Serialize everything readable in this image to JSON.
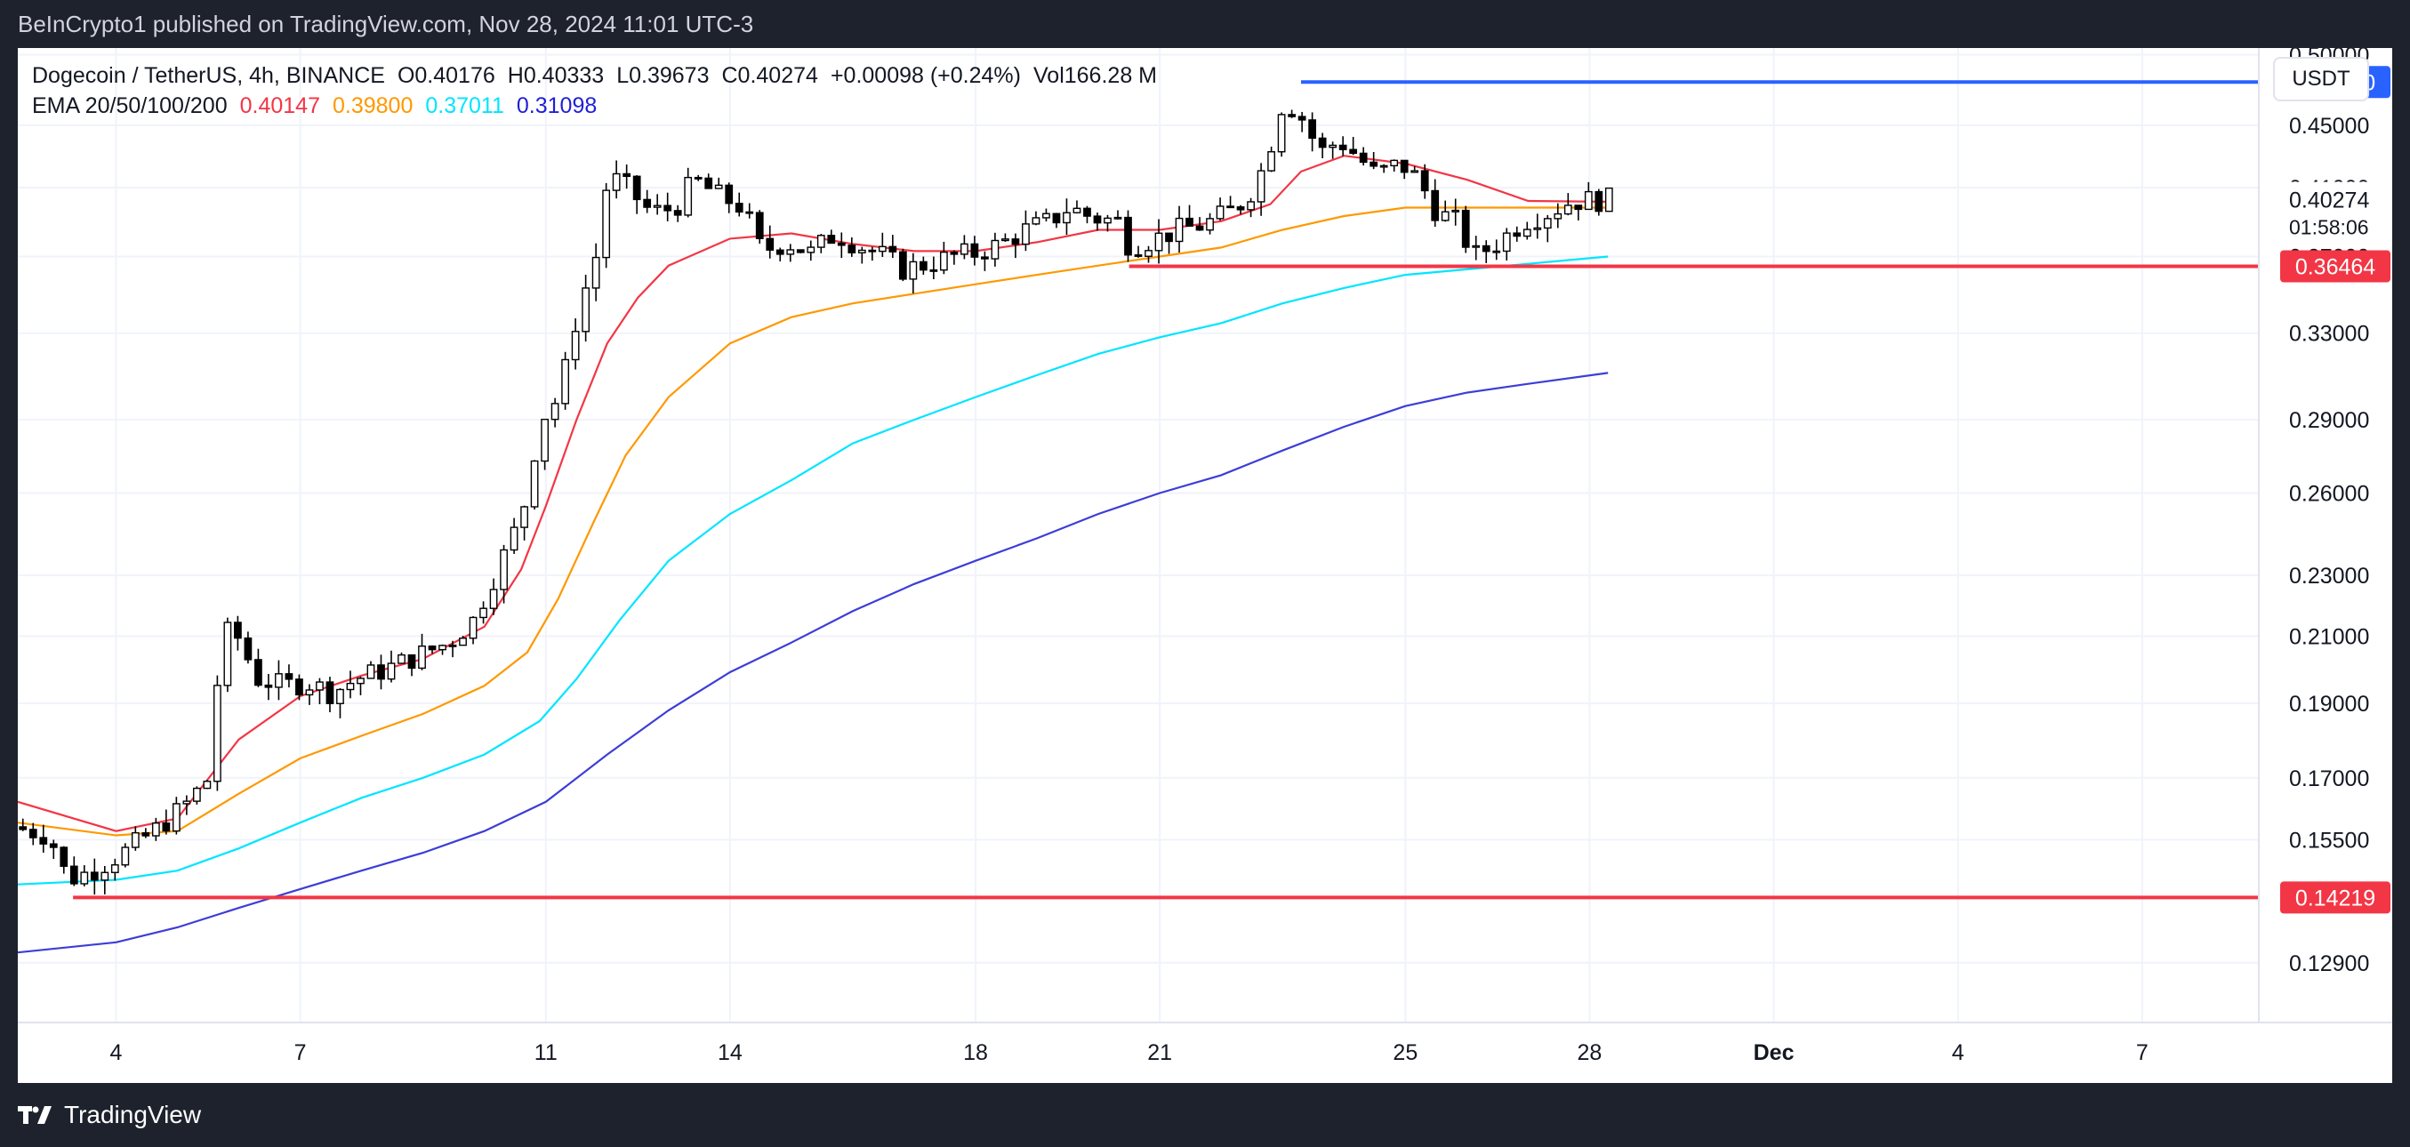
{
  "header": {
    "published": "BeInCrypto1 published on TradingView.com, Nov 28, 2024 11:01 UTC-3"
  },
  "legend": {
    "symbol": "Dogecoin / TetherUS, 4h, BINANCE",
    "open": "O0.40176",
    "high": "H0.40333",
    "low": "L0.39673",
    "close": "C0.40274",
    "change": "+0.00098 (+0.24%)",
    "volume": "Vol166.28 M",
    "ema_label": "EMA 20/50/100/200",
    "ema_values": [
      {
        "value": "0.40147",
        "color": "#f23645"
      },
      {
        "value": "0.39800",
        "color": "#ff9800"
      },
      {
        "value": "0.37011",
        "color": "#00e5ff"
      },
      {
        "value": "0.31098",
        "color": "#1f1fd6"
      }
    ]
  },
  "currency_button": "USDT",
  "footer": {
    "brand": "TradingView",
    "icon": "tradingview-logo-icon"
  },
  "chart_data": {
    "type": "candlestick",
    "y_scale": "log",
    "ylim": [
      0.118,
      0.505
    ],
    "y_ticks": [
      "0.50000",
      "0.45000",
      "0.41000",
      "0.37000",
      "0.33000",
      "0.29000",
      "0.26000",
      "0.23000",
      "0.21000",
      "0.19000",
      "0.17000",
      "0.15500",
      "0.12900"
    ],
    "x_labels": [
      {
        "label": "4",
        "day": 4
      },
      {
        "label": "7",
        "day": 7
      },
      {
        "label": "11",
        "day": 11
      },
      {
        "label": "14",
        "day": 14
      },
      {
        "label": "18",
        "day": 18
      },
      {
        "label": "21",
        "day": 21
      },
      {
        "label": "25",
        "day": 25
      },
      {
        "label": "28",
        "day": 28
      },
      {
        "label": "Dec",
        "day": 31
      },
      {
        "label": "4",
        "day": 34
      },
      {
        "label": "7",
        "day": 37
      }
    ],
    "xlim_days": [
      2.4,
      38.9
    ],
    "last_price_label": "0.40274",
    "countdown": "01:58:06",
    "horizontal_levels": [
      {
        "value": 0.48,
        "label": "0.48000",
        "color": "#2962ff",
        "start_day": 23.3
      },
      {
        "value": 0.36464,
        "label": "0.36464",
        "color": "#f23645",
        "start_day": 20.5
      },
      {
        "value": 0.14219,
        "label": "0.14219",
        "color": "#f23645",
        "start_day": 3.3
      }
    ],
    "price_path": [
      [
        2.4,
        0.158
      ],
      [
        3.0,
        0.156
      ],
      [
        3.3,
        0.146
      ],
      [
        3.7,
        0.148
      ],
      [
        4.2,
        0.152
      ],
      [
        4.7,
        0.157
      ],
      [
        5.2,
        0.163
      ],
      [
        5.6,
        0.17
      ],
      [
        5.8,
        0.21
      ],
      [
        6.0,
        0.212
      ],
      [
        6.4,
        0.197
      ],
      [
        6.8,
        0.195
      ],
      [
        7.2,
        0.196
      ],
      [
        7.6,
        0.193
      ],
      [
        8.0,
        0.197
      ],
      [
        8.5,
        0.2
      ],
      [
        9.0,
        0.204
      ],
      [
        9.5,
        0.208
      ],
      [
        9.9,
        0.215
      ],
      [
        10.3,
        0.232
      ],
      [
        10.7,
        0.252
      ],
      [
        11.0,
        0.29
      ],
      [
        11.3,
        0.3
      ],
      [
        11.6,
        0.34
      ],
      [
        11.9,
        0.37
      ],
      [
        12.1,
        0.418
      ],
      [
        12.4,
        0.41
      ],
      [
        12.8,
        0.395
      ],
      [
        13.2,
        0.398
      ],
      [
        13.5,
        0.415
      ],
      [
        13.9,
        0.405
      ],
      [
        14.3,
        0.398
      ],
      [
        14.6,
        0.373
      ],
      [
        15.0,
        0.378
      ],
      [
        15.4,
        0.372
      ],
      [
        15.8,
        0.383
      ],
      [
        16.2,
        0.376
      ],
      [
        16.6,
        0.37
      ],
      [
        16.9,
        0.363
      ],
      [
        17.3,
        0.366
      ],
      [
        17.7,
        0.37
      ],
      [
        18.1,
        0.372
      ],
      [
        18.5,
        0.377
      ],
      [
        18.9,
        0.385
      ],
      [
        19.3,
        0.39
      ],
      [
        19.6,
        0.398
      ],
      [
        20.0,
        0.392
      ],
      [
        20.4,
        0.39
      ],
      [
        20.6,
        0.375
      ],
      [
        21.0,
        0.38
      ],
      [
        21.4,
        0.385
      ],
      [
        21.8,
        0.388
      ],
      [
        22.2,
        0.395
      ],
      [
        22.5,
        0.403
      ],
      [
        22.8,
        0.425
      ],
      [
        23.1,
        0.468
      ],
      [
        23.4,
        0.455
      ],
      [
        23.7,
        0.432
      ],
      [
        24.0,
        0.44
      ],
      [
        24.3,
        0.43
      ],
      [
        24.6,
        0.418
      ],
      [
        25.0,
        0.425
      ],
      [
        25.3,
        0.415
      ],
      [
        25.6,
        0.395
      ],
      [
        25.9,
        0.39
      ],
      [
        26.2,
        0.37
      ],
      [
        26.6,
        0.378
      ],
      [
        27.0,
        0.39
      ],
      [
        27.4,
        0.395
      ],
      [
        27.8,
        0.402
      ],
      [
        28.3,
        0.4027
      ]
    ],
    "series": [
      {
        "name": "EMA 20",
        "color": "#f23645",
        "points": [
          [
            2.4,
            0.164
          ],
          [
            4.0,
            0.157
          ],
          [
            5.0,
            0.16
          ],
          [
            6.0,
            0.18
          ],
          [
            7.0,
            0.192
          ],
          [
            8.0,
            0.198
          ],
          [
            9.0,
            0.203
          ],
          [
            10.0,
            0.213
          ],
          [
            10.6,
            0.232
          ],
          [
            11.0,
            0.255
          ],
          [
            11.5,
            0.29
          ],
          [
            12.0,
            0.325
          ],
          [
            12.5,
            0.348
          ],
          [
            13.0,
            0.365
          ],
          [
            14.0,
            0.38
          ],
          [
            15.0,
            0.383
          ],
          [
            16.0,
            0.377
          ],
          [
            17.0,
            0.373
          ],
          [
            18.0,
            0.373
          ],
          [
            19.0,
            0.378
          ],
          [
            20.0,
            0.385
          ],
          [
            21.0,
            0.385
          ],
          [
            22.0,
            0.39
          ],
          [
            22.8,
            0.4
          ],
          [
            23.3,
            0.42
          ],
          [
            24.0,
            0.43
          ],
          [
            25.0,
            0.425
          ],
          [
            26.0,
            0.415
          ],
          [
            27.0,
            0.402
          ],
          [
            28.3,
            0.4015
          ]
        ]
      },
      {
        "name": "EMA 50",
        "color": "#ff9800",
        "points": [
          [
            2.4,
            0.159
          ],
          [
            4.0,
            0.156
          ],
          [
            5.0,
            0.157
          ],
          [
            6.0,
            0.166
          ],
          [
            7.0,
            0.175
          ],
          [
            8.0,
            0.181
          ],
          [
            9.0,
            0.187
          ],
          [
            10.0,
            0.195
          ],
          [
            10.7,
            0.205
          ],
          [
            11.2,
            0.222
          ],
          [
            11.8,
            0.25
          ],
          [
            12.3,
            0.275
          ],
          [
            13.0,
            0.3
          ],
          [
            14.0,
            0.325
          ],
          [
            15.0,
            0.338
          ],
          [
            16.0,
            0.345
          ],
          [
            17.0,
            0.35
          ],
          [
            18.0,
            0.355
          ],
          [
            19.0,
            0.36
          ],
          [
            20.0,
            0.365
          ],
          [
            21.0,
            0.37
          ],
          [
            22.0,
            0.375
          ],
          [
            23.0,
            0.385
          ],
          [
            24.0,
            0.393
          ],
          [
            25.0,
            0.398
          ],
          [
            26.0,
            0.398
          ],
          [
            27.0,
            0.398
          ],
          [
            28.3,
            0.398
          ]
        ]
      },
      {
        "name": "EMA 100",
        "color": "#00e5ff",
        "points": [
          [
            2.4,
            0.145
          ],
          [
            4.0,
            0.146
          ],
          [
            5.0,
            0.148
          ],
          [
            6.0,
            0.153
          ],
          [
            7.0,
            0.159
          ],
          [
            8.0,
            0.165
          ],
          [
            9.0,
            0.17
          ],
          [
            10.0,
            0.176
          ],
          [
            10.9,
            0.185
          ],
          [
            11.5,
            0.197
          ],
          [
            12.2,
            0.215
          ],
          [
            13.0,
            0.235
          ],
          [
            14.0,
            0.252
          ],
          [
            15.0,
            0.265
          ],
          [
            16.0,
            0.28
          ],
          [
            17.0,
            0.29
          ],
          [
            18.0,
            0.3
          ],
          [
            19.0,
            0.31
          ],
          [
            20.0,
            0.32
          ],
          [
            21.0,
            0.328
          ],
          [
            22.0,
            0.335
          ],
          [
            23.0,
            0.345
          ],
          [
            24.0,
            0.353
          ],
          [
            25.0,
            0.36
          ],
          [
            26.0,
            0.363
          ],
          [
            27.0,
            0.366
          ],
          [
            28.3,
            0.37
          ]
        ]
      },
      {
        "name": "EMA 200",
        "color": "#3d3dd8",
        "points": [
          [
            2.4,
            0.131
          ],
          [
            4.0,
            0.133
          ],
          [
            5.0,
            0.136
          ],
          [
            6.0,
            0.14
          ],
          [
            7.0,
            0.144
          ],
          [
            8.0,
            0.148
          ],
          [
            9.0,
            0.152
          ],
          [
            10.0,
            0.157
          ],
          [
            11.0,
            0.164
          ],
          [
            12.0,
            0.176
          ],
          [
            13.0,
            0.188
          ],
          [
            14.0,
            0.199
          ],
          [
            15.0,
            0.208
          ],
          [
            16.0,
            0.218
          ],
          [
            17.0,
            0.227
          ],
          [
            18.0,
            0.235
          ],
          [
            19.0,
            0.243
          ],
          [
            20.0,
            0.252
          ],
          [
            21.0,
            0.26
          ],
          [
            22.0,
            0.267
          ],
          [
            23.0,
            0.277
          ],
          [
            24.0,
            0.287
          ],
          [
            25.0,
            0.296
          ],
          [
            26.0,
            0.302
          ],
          [
            27.0,
            0.306
          ],
          [
            28.3,
            0.311
          ]
        ]
      }
    ]
  }
}
